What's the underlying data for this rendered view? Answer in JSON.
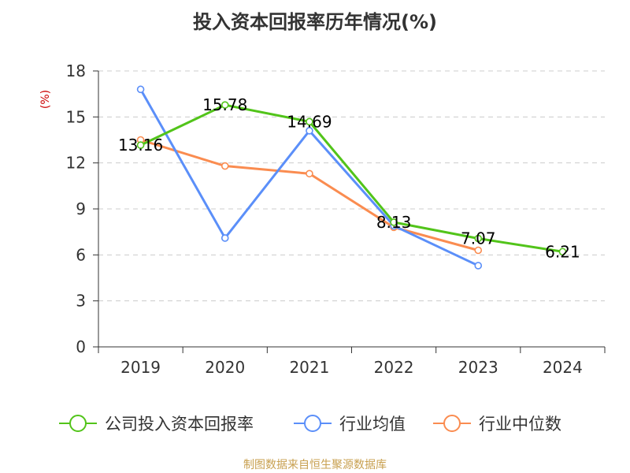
{
  "chart_data": {
    "type": "line",
    "title": "投入资本回报率历年情况(%)",
    "ylabel": "(%)",
    "xlabel": "",
    "categories": [
      "2019",
      "2020",
      "2021",
      "2022",
      "2023",
      "2024"
    ],
    "ylim": [
      0,
      18
    ],
    "yticks": [
      0,
      3,
      6,
      9,
      12,
      15,
      18
    ],
    "grid": true,
    "legend_position": "bottom",
    "series": [
      {
        "name": "公司投入资本回报率",
        "color": "#52c41a",
        "values": [
          13.16,
          15.78,
          14.69,
          8.13,
          7.07,
          6.21
        ],
        "data_labels": [
          "13.16",
          "15.78",
          "14.69",
          "8.13",
          "7.07",
          "6.21"
        ]
      },
      {
        "name": "行业均值",
        "color": "#5b8ff9",
        "values": [
          16.8,
          7.1,
          14.1,
          7.9,
          5.3,
          null
        ]
      },
      {
        "name": "行业中位数",
        "color": "#fa8c50",
        "values": [
          13.5,
          11.8,
          11.3,
          7.8,
          6.3,
          null
        ]
      }
    ]
  },
  "footer": {
    "source": "制图数据来自恒生聚源数据库"
  }
}
